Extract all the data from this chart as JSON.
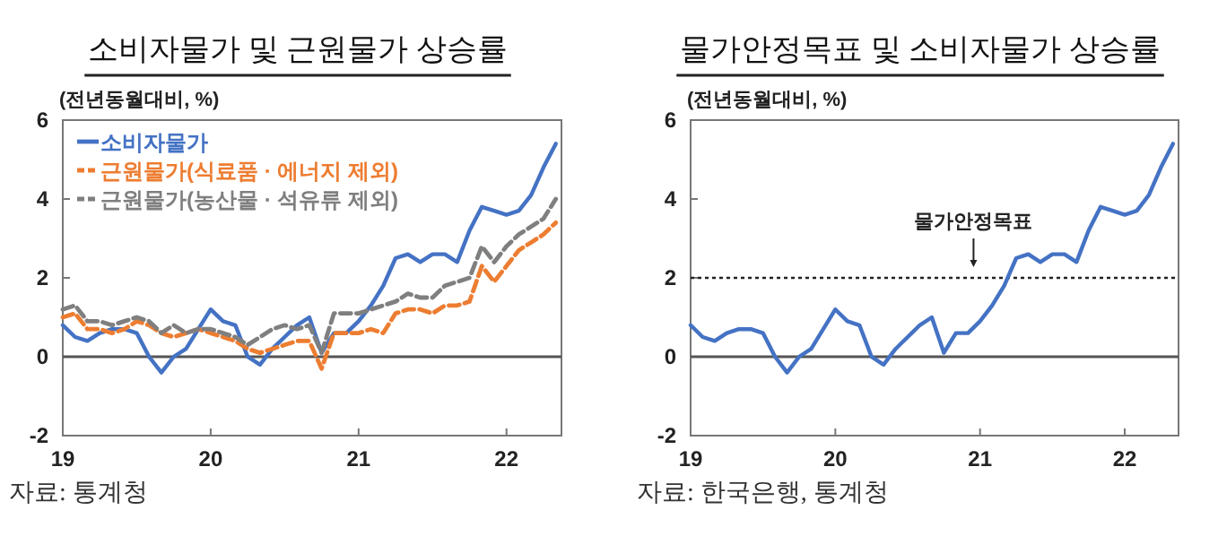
{
  "chart_data": [
    {
      "type": "line",
      "title": "소비자물가 및 근원물가 상승률",
      "ylabel": "(전년동월대비, %)",
      "x": [
        "2019-01",
        "2019-02",
        "2019-03",
        "2019-04",
        "2019-05",
        "2019-06",
        "2019-07",
        "2019-08",
        "2019-09",
        "2019-10",
        "2019-11",
        "2019-12",
        "2020-01",
        "2020-02",
        "2020-03",
        "2020-04",
        "2020-05",
        "2020-06",
        "2020-07",
        "2020-08",
        "2020-09",
        "2020-10",
        "2020-11",
        "2020-12",
        "2021-01",
        "2021-02",
        "2021-03",
        "2021-04",
        "2021-05",
        "2021-06",
        "2021-07",
        "2021-08",
        "2021-09",
        "2021-10",
        "2021-11",
        "2021-12",
        "2022-01",
        "2022-02",
        "2022-03",
        "2022-04",
        "2022-05"
      ],
      "series": [
        {
          "name": "소비자물가",
          "color": "#4472c4",
          "line_style": "solid",
          "values": [
            0.8,
            0.5,
            0.4,
            0.6,
            0.7,
            0.7,
            0.6,
            0.0,
            -0.4,
            0.0,
            0.2,
            0.7,
            1.2,
            0.9,
            0.8,
            0.0,
            -0.2,
            0.2,
            0.5,
            0.8,
            1.0,
            0.1,
            0.6,
            0.6,
            0.9,
            1.3,
            1.8,
            2.5,
            2.6,
            2.4,
            2.6,
            2.6,
            2.4,
            3.2,
            3.8,
            3.7,
            3.6,
            3.7,
            4.1,
            4.8,
            5.4
          ]
        },
        {
          "name": "근원물가(식료품 · 에너지 제외)",
          "color": "#ed7d31",
          "line_style": "dashed",
          "values": [
            1.0,
            1.1,
            0.7,
            0.7,
            0.6,
            0.7,
            0.9,
            0.8,
            0.6,
            0.5,
            0.6,
            0.7,
            0.6,
            0.5,
            0.4,
            0.2,
            0.1,
            0.2,
            0.3,
            0.4,
            0.4,
            -0.3,
            0.6,
            0.6,
            0.6,
            0.7,
            0.6,
            1.1,
            1.2,
            1.2,
            1.1,
            1.3,
            1.3,
            1.4,
            2.3,
            1.9,
            2.3,
            2.7,
            2.9,
            3.1,
            3.4
          ]
        },
        {
          "name": "근원물가(농산물 · 석유류 제외)",
          "color": "#7f7f7f",
          "line_style": "dashed",
          "values": [
            1.2,
            1.3,
            0.9,
            0.9,
            0.8,
            0.9,
            1.0,
            0.9,
            0.6,
            0.8,
            0.6,
            0.7,
            0.7,
            0.6,
            0.5,
            0.3,
            0.5,
            0.7,
            0.8,
            0.7,
            0.8,
            0.1,
            1.1,
            1.1,
            1.1,
            1.2,
            1.3,
            1.4,
            1.6,
            1.5,
            1.5,
            1.8,
            1.9,
            2.0,
            2.8,
            2.4,
            2.8,
            3.1,
            3.3,
            3.5,
            4.0
          ]
        }
      ],
      "xlim": [
        "2019-01-01",
        "2022-05-15"
      ],
      "xticks": [
        {
          "value": "2019-01-01",
          "label": "19"
        },
        {
          "value": "2020-01-01",
          "label": "20"
        },
        {
          "value": "2021-01-01",
          "label": "21"
        },
        {
          "value": "2022-01-01",
          "label": "22"
        }
      ],
      "ylim": [
        -2,
        6
      ],
      "yticks": [
        -2,
        0,
        2,
        4,
        6
      ],
      "grid": false,
      "legend": "top left",
      "marker": "none",
      "ref_lines": [
        {
          "axis": "y",
          "value": 0,
          "color": "#555555"
        }
      ],
      "annotations": [
        "자료: 통계청"
      ]
    },
    {
      "type": "line",
      "title": "물가안정목표 및 소비자물가 상승률",
      "ylabel": "(전년동월대비, %)",
      "x": [
        "2019-01",
        "2019-02",
        "2019-03",
        "2019-04",
        "2019-05",
        "2019-06",
        "2019-07",
        "2019-08",
        "2019-09",
        "2019-10",
        "2019-11",
        "2019-12",
        "2020-01",
        "2020-02",
        "2020-03",
        "2020-04",
        "2020-05",
        "2020-06",
        "2020-07",
        "2020-08",
        "2020-09",
        "2020-10",
        "2020-11",
        "2020-12",
        "2021-01",
        "2021-02",
        "2021-03",
        "2021-04",
        "2021-05",
        "2021-06",
        "2021-07",
        "2021-08",
        "2021-09",
        "2021-10",
        "2021-11",
        "2021-12",
        "2022-01",
        "2022-02",
        "2022-03",
        "2022-04",
        "2022-05"
      ],
      "series": [
        {
          "color": "#4472c4",
          "line_style": "solid",
          "values": [
            0.8,
            0.5,
            0.4,
            0.6,
            0.7,
            0.7,
            0.6,
            0.0,
            -0.4,
            0.0,
            0.2,
            0.7,
            1.2,
            0.9,
            0.8,
            0.0,
            -0.2,
            0.2,
            0.5,
            0.8,
            1.0,
            0.1,
            0.6,
            0.6,
            0.9,
            1.3,
            1.8,
            2.5,
            2.6,
            2.4,
            2.6,
            2.6,
            2.4,
            3.2,
            3.8,
            3.7,
            3.6,
            3.7,
            4.1,
            4.8,
            5.4
          ]
        }
      ],
      "xlim": [
        "2019-01-01",
        "2022-05-15"
      ],
      "xticks": [
        {
          "value": "2019-01-01",
          "label": "19"
        },
        {
          "value": "2020-01-01",
          "label": "20"
        },
        {
          "value": "2021-01-01",
          "label": "21"
        },
        {
          "value": "2022-01-01",
          "label": "22"
        }
      ],
      "ylim": [
        -2,
        6
      ],
      "yticks": [
        -2,
        0,
        2,
        4,
        6
      ],
      "grid": false,
      "legend": false,
      "marker": "none",
      "ref_lines": [
        {
          "axis": "y",
          "value": 0,
          "color": "#555555"
        },
        {
          "axis": "y",
          "value": 2,
          "color": "#222222",
          "line_style": "dotted"
        }
      ],
      "annotations": [
        {
          "text": "물가안정목표",
          "x": "2020-12-15",
          "y": 2
        },
        "자료: 한국은행, 통계청"
      ]
    }
  ]
}
